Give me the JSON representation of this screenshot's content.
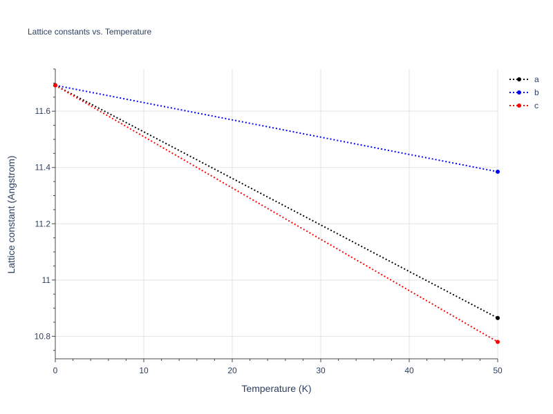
{
  "chart_data": {
    "type": "line",
    "title": "Lattice constants vs. Temperature",
    "xlabel": "Temperature (K)",
    "ylabel": "Lattice constant (Angstrom)",
    "xlim": [
      0,
      50
    ],
    "ylim": [
      10.72,
      11.75
    ],
    "x_ticks": [
      0,
      10,
      20,
      30,
      40,
      50
    ],
    "x_tick_labels": [
      "0",
      "10",
      "20",
      "30",
      "40",
      "50"
    ],
    "y_ticks": [
      10.8,
      11.0,
      11.2,
      11.4,
      11.6
    ],
    "y_tick_labels": [
      "10.8",
      "11",
      "11.2",
      "11.4",
      "11.6"
    ],
    "grid": true,
    "legend_position": "top-right",
    "x": [
      0,
      50
    ],
    "series": [
      {
        "name": "a",
        "color": "#000000",
        "values": [
          11.692,
          10.865
        ]
      },
      {
        "name": "b",
        "color": "#0000ff",
        "values": [
          11.692,
          11.385
        ]
      },
      {
        "name": "c",
        "color": "#ff0000",
        "values": [
          11.692,
          10.78
        ]
      }
    ]
  }
}
